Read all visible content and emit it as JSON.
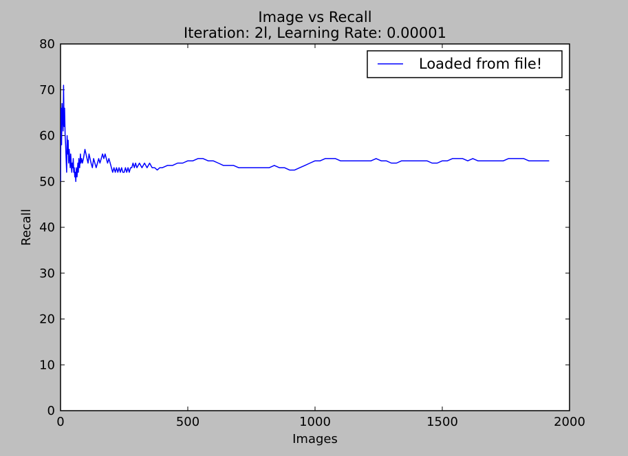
{
  "colors": {
    "background": "#bfbfbf",
    "plot_area": "#ffffff",
    "series_line": "#0000ff"
  },
  "chart_data": {
    "type": "line",
    "title": "Image vs Recall",
    "subtitle": "Iteration: 2l, Learning Rate: 0.00001",
    "xlabel": "Images",
    "ylabel": "Recall",
    "xlim": [
      0,
      2000
    ],
    "ylim": [
      0,
      80
    ],
    "xticks": [
      0,
      500,
      1000,
      1500,
      2000
    ],
    "yticks": [
      0,
      10,
      20,
      30,
      40,
      50,
      60,
      70,
      80
    ],
    "grid": false,
    "legend_position": "top-right",
    "series": [
      {
        "name": "Loaded from file!",
        "color": "#0000ff",
        "x": [
          0,
          2,
          4,
          6,
          8,
          10,
          12,
          14,
          16,
          18,
          20,
          22,
          24,
          26,
          28,
          30,
          32,
          34,
          36,
          38,
          40,
          42,
          44,
          46,
          48,
          50,
          52,
          54,
          56,
          58,
          60,
          62,
          65,
          68,
          70,
          72,
          75,
          78,
          80,
          83,
          86,
          90,
          93,
          96,
          100,
          104,
          108,
          112,
          116,
          120,
          125,
          130,
          135,
          140,
          145,
          150,
          155,
          160,
          165,
          170,
          175,
          180,
          185,
          190,
          195,
          200,
          205,
          210,
          215,
          220,
          225,
          230,
          235,
          240,
          245,
          250,
          255,
          260,
          265,
          270,
          275,
          280,
          285,
          290,
          295,
          300,
          310,
          320,
          330,
          340,
          350,
          360,
          370,
          380,
          390,
          400,
          420,
          440,
          460,
          480,
          500,
          520,
          540,
          560,
          580,
          600,
          620,
          640,
          660,
          680,
          700,
          720,
          740,
          760,
          780,
          800,
          820,
          840,
          860,
          880,
          900,
          920,
          940,
          960,
          980,
          1000,
          1020,
          1040,
          1060,
          1080,
          1100,
          1120,
          1140,
          1160,
          1180,
          1200,
          1220,
          1240,
          1260,
          1280,
          1300,
          1320,
          1340,
          1360,
          1380,
          1400,
          1420,
          1440,
          1460,
          1480,
          1500,
          1520,
          1540,
          1560,
          1580,
          1600,
          1620,
          1640,
          1660,
          1680,
          1700,
          1720,
          1740,
          1760,
          1780,
          1800,
          1820,
          1840,
          1860,
          1880,
          1900,
          1920
        ],
        "y": [
          50,
          66,
          58,
          67,
          64,
          61,
          71,
          62,
          66,
          60,
          58,
          55,
          52,
          60,
          56,
          59,
          54,
          57,
          55,
          53,
          56,
          54,
          52,
          54,
          53,
          55,
          52,
          53,
          51,
          52,
          50,
          53,
          51,
          54,
          52,
          55,
          53,
          56,
          54,
          55,
          54,
          55,
          56,
          57,
          56,
          55,
          54,
          56,
          55,
          54,
          53,
          55,
          54,
          53,
          54,
          55,
          54,
          55,
          56,
          55,
          56,
          55,
          54,
          55,
          54,
          53,
          52,
          53,
          52,
          53,
          52,
          53,
          52,
          53,
          52,
          52,
          53,
          52,
          53,
          52,
          53,
          53,
          54,
          53,
          54,
          53,
          54,
          53,
          54,
          53,
          54,
          53,
          53,
          52.5,
          53,
          53,
          53.5,
          53.5,
          54,
          54,
          54.5,
          54.5,
          55,
          55,
          54.5,
          54.5,
          54,
          53.5,
          53.5,
          53.5,
          53,
          53,
          53,
          53,
          53,
          53,
          53,
          53.5,
          53,
          53,
          52.5,
          52.5,
          53,
          53.5,
          54,
          54.5,
          54.5,
          55,
          55,
          55,
          54.5,
          54.5,
          54.5,
          54.5,
          54.5,
          54.5,
          54.5,
          55,
          54.5,
          54.5,
          54,
          54,
          54.5,
          54.5,
          54.5,
          54.5,
          54.5,
          54.5,
          54,
          54,
          54.5,
          54.5,
          55,
          55,
          55,
          54.5,
          55,
          54.5,
          54.5,
          54.5,
          54.5,
          54.5,
          54.5,
          55,
          55,
          55,
          55,
          54.5,
          54.5,
          54.5,
          54.5,
          54.5
        ]
      }
    ]
  }
}
